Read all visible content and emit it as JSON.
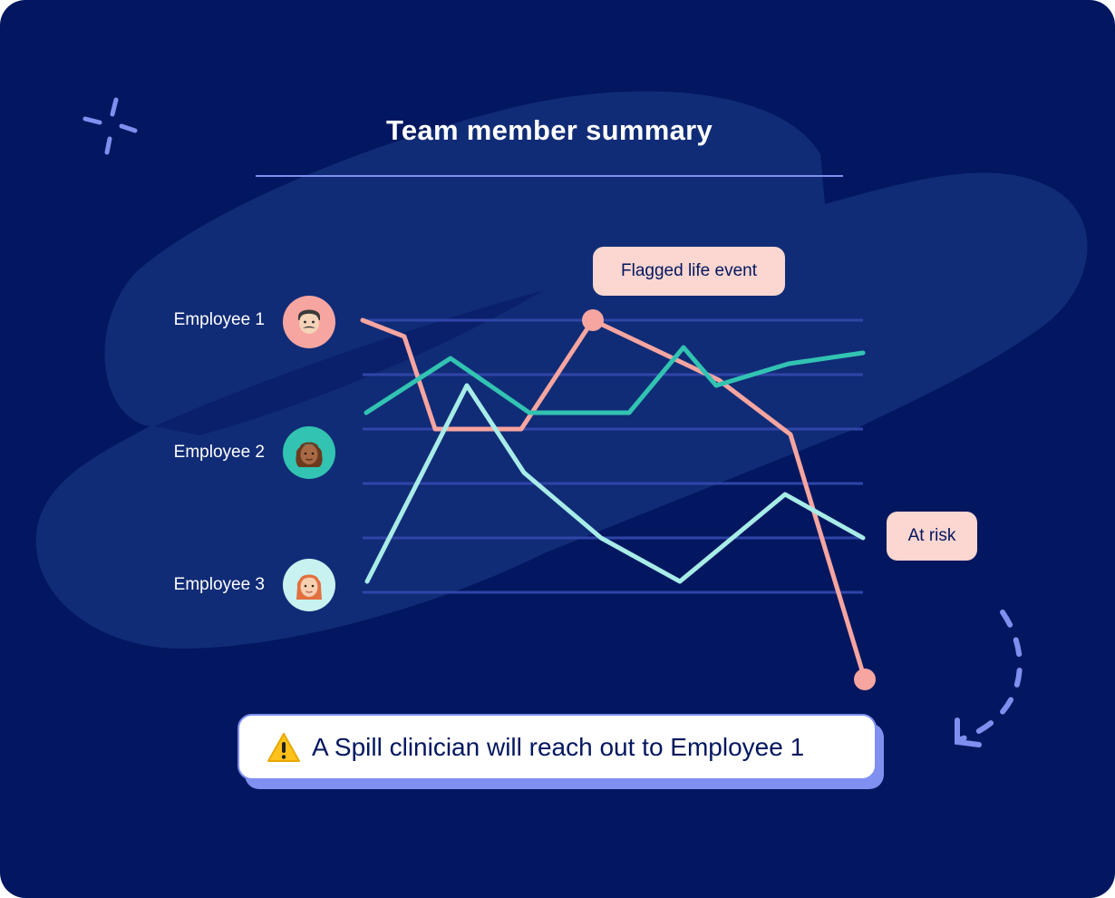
{
  "title": "Team member summary",
  "employees": [
    {
      "label": "Employee 1",
      "avatar_icon": "man-face-icon",
      "avatar_bg": "#f7a5a0"
    },
    {
      "label": "Employee 2",
      "avatar_icon": "woman-curly-hair-face-icon",
      "avatar_bg": "#32c3b2"
    },
    {
      "label": "Employee 3",
      "avatar_icon": "woman-red-hair-face-icon",
      "avatar_bg": "#c8f2ef"
    }
  ],
  "callouts": {
    "flagged": "Flagged life event",
    "at_risk": "At risk"
  },
  "banner": {
    "icon": "warning-icon",
    "text": "A Spill clinician will reach out to Employee 1"
  },
  "colors": {
    "background": "#02175f",
    "employee_1": "#f7a5a0",
    "employee_2": "#32c3b2",
    "employee_3": "#a8ece8",
    "gridline": "#2f45a8",
    "accent": "#7f8ff0"
  },
  "chart_data": {
    "type": "line",
    "title": "Team member summary",
    "series": [
      {
        "name": "Employee 1",
        "values": [
          6,
          5.7,
          4,
          4,
          6,
          4.9,
          3.9,
          -0.6
        ]
      },
      {
        "name": "Employee 2",
        "values": [
          4.3,
          5.3,
          4.3,
          4.3,
          5.5,
          4.8,
          5.2,
          5.4
        ]
      },
      {
        "name": "Employee 3",
        "values": [
          1.2,
          4.8,
          3.2,
          2,
          1.2,
          2.8,
          2
        ]
      }
    ],
    "annotations": [
      {
        "series": "Employee 1",
        "point_index": 4,
        "text": "Flagged life event"
      },
      {
        "series": "Employee 1",
        "point_index": 7,
        "text": "At risk"
      }
    ],
    "grid": true
  }
}
